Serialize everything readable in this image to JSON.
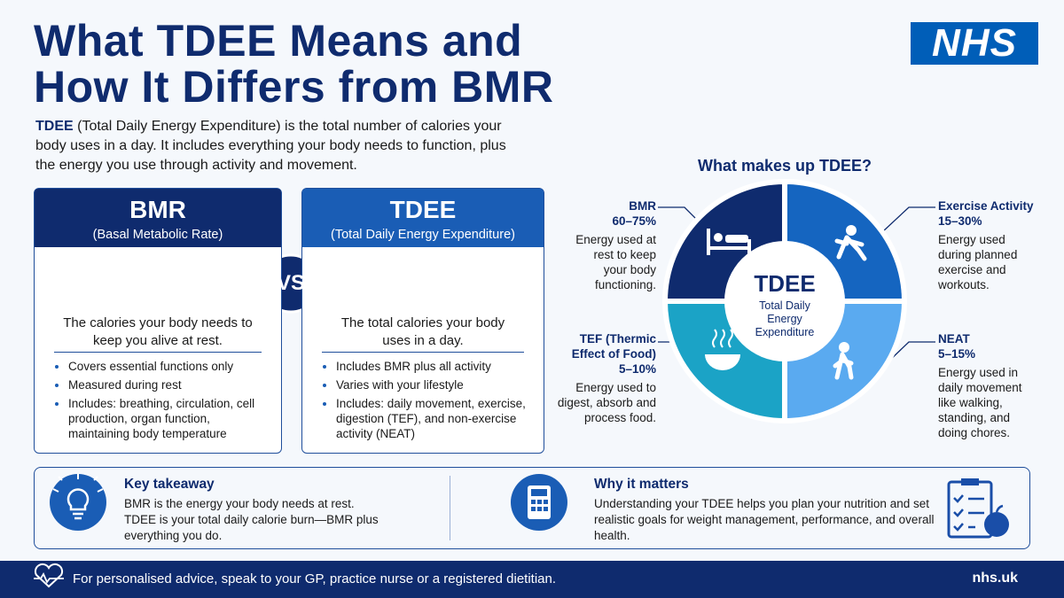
{
  "header": {
    "title_line1": "What TDEE Means and",
    "title_line2": "How It Differs from BMR",
    "logo": "NHS"
  },
  "intro": {
    "term": "TDEE",
    "text": "(Total Daily Energy Expenditure) is the total number of calories your body uses in a day. It includes everything your body needs to function, plus the energy you use through activity and movement."
  },
  "cards": [
    {
      "title": "BMR",
      "subtitle": "(Basal Metabolic Rate)",
      "summary": "The calories your body needs to keep you alive at rest.",
      "bullets": [
        "Covers essential functions only",
        "Measured during rest",
        "Includes: breathing, circulation, cell production, organ function, maintaining body temperature"
      ]
    },
    {
      "title": "TDEE",
      "subtitle": "(Total Daily Energy Expenditure)",
      "summary": "The total calories your body uses in a day.",
      "bullets": [
        "Includes BMR plus all activity",
        "Varies with your lifestyle",
        "Includes: daily movement, exercise, digestion (TEF), and non-exercise activity (NEAT)"
      ]
    }
  ],
  "vs": "VS",
  "donut": {
    "heading": "What makes up TDEE?",
    "center_title": "TDEE",
    "center_subtitle": "Total Daily Energy Expenditure",
    "segments": [
      {
        "name": "BMR",
        "range": "60–75%",
        "description": "Energy used at rest to keep your body functioning."
      },
      {
        "name": "Exercise Activity",
        "range": "15–30%",
        "description": "Energy used during planned exercise and workouts."
      },
      {
        "name": "TEF (Thermic Effect of Food)",
        "range": "5–10%",
        "description": "Energy used to digest, absorb and process food."
      },
      {
        "name": "NEAT",
        "range": "5–15%",
        "description": "Energy used in daily movement like walking, standing, and doing chores."
      }
    ]
  },
  "takeaways": [
    {
      "title": "Key takeaway",
      "text": "BMR is the energy your body needs at rest. TDEE is your total daily calorie burn—BMR plus everything you do."
    },
    {
      "title": "Why it matters",
      "text": "Understanding your TDEE helps you plan your nutrition and set realistic goals for weight management, performance, and overall health."
    }
  ],
  "footer": {
    "text": "For personalised advice, speak to your GP, practice nurse or a registered dietitian.",
    "link": "nhs.uk"
  }
}
